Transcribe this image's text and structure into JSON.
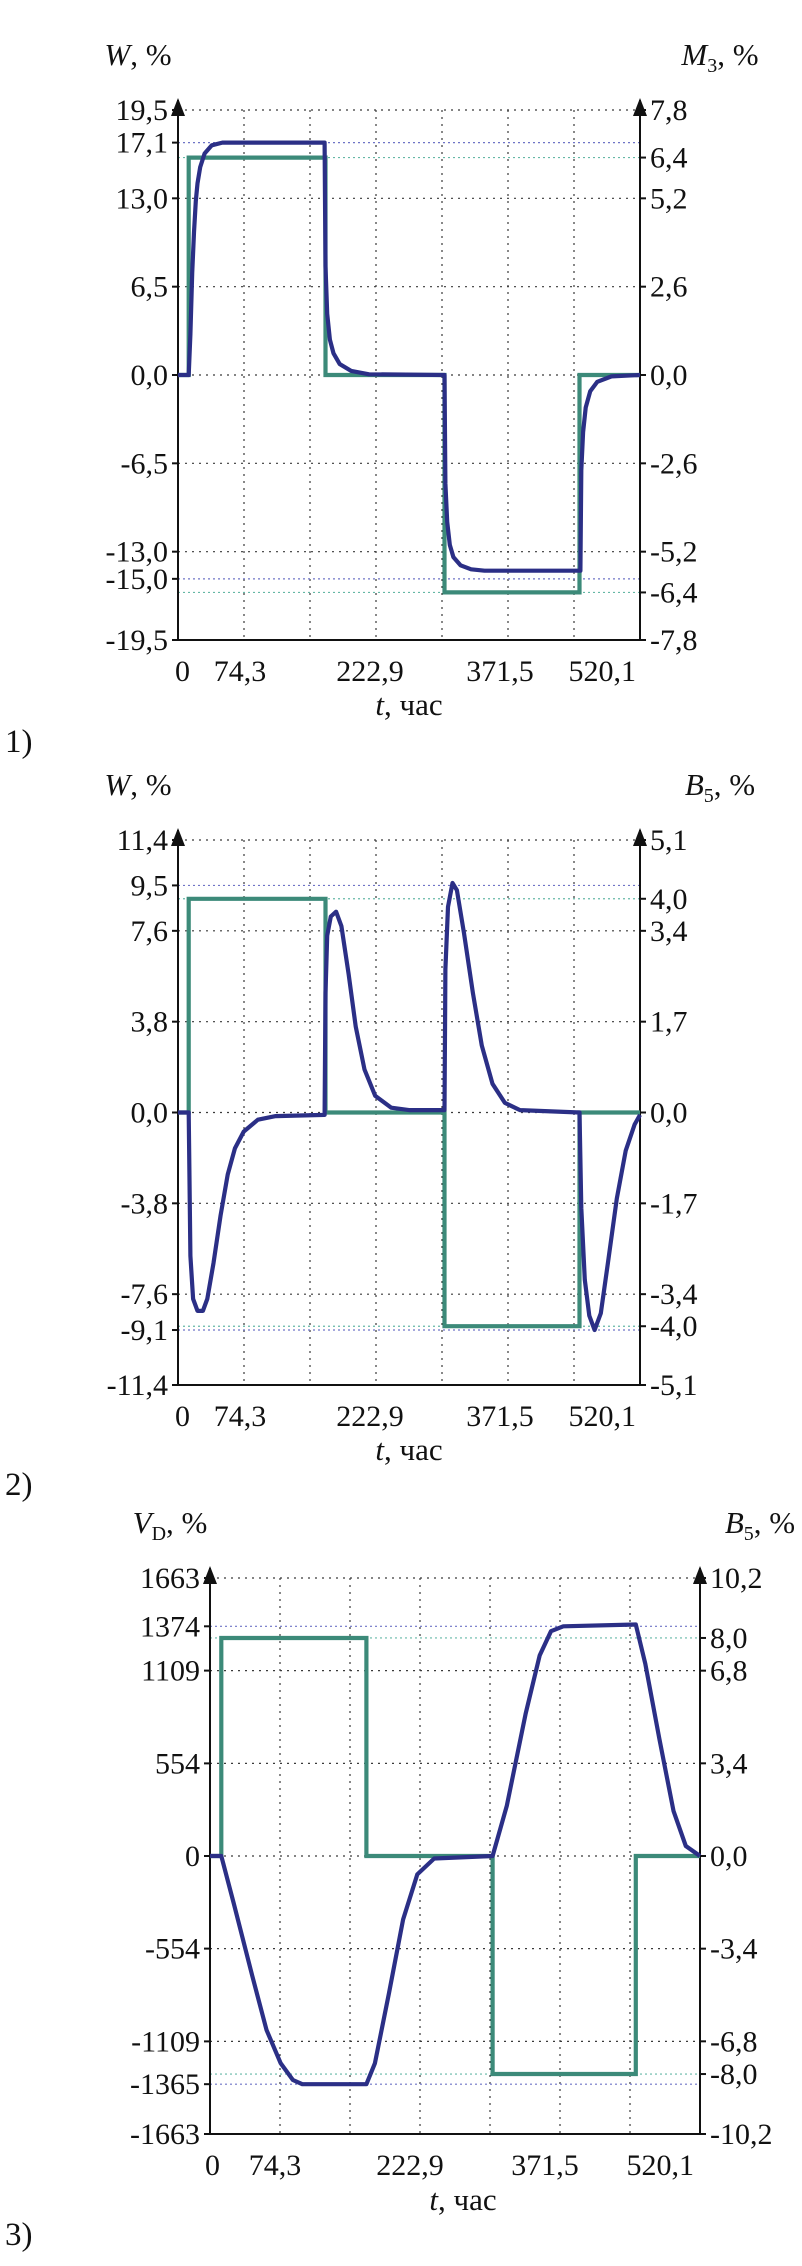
{
  "colors": {
    "blue_series": "#2b2f86",
    "green_series": "#3c8a79",
    "guide_blue": "#6f74c6",
    "guide_green": "#66b8a6"
  },
  "chart_data": [
    {
      "type": "line",
      "panel_label": "1)",
      "xlabel": "t, час",
      "xticks": [
        "0",
        "74,3",
        "222,9",
        "371,5",
        "520,1"
      ],
      "xlim": [
        0,
        520.1
      ],
      "left_axis": {
        "label": "W, %",
        "ylim": [
          -19.5,
          19.5
        ],
        "ticks": [
          19.5,
          17.1,
          13.0,
          6.5,
          0.0,
          -6.5,
          -13.0,
          -15.0,
          -19.5
        ],
        "tick_labels": [
          "19,5",
          "17,1",
          "13,0",
          "6,5",
          "0,0",
          "-6,5",
          "-13,0",
          "-15,0",
          "-19,5"
        ]
      },
      "right_axis": {
        "label": "M3, %",
        "ylim": [
          -7.8,
          7.8
        ],
        "ticks": [
          7.8,
          6.4,
          5.2,
          2.6,
          0.0,
          -2.6,
          -5.2,
          -6.4,
          -7.8
        ],
        "tick_labels": [
          "7,8",
          "6,4",
          "5,2",
          "2,6",
          "0,0",
          "-2,6",
          "-5,2",
          "-6,4",
          "-7,8"
        ]
      },
      "series": [
        {
          "axis": "left",
          "color": "blue",
          "shape": "response",
          "points": [
            [
              0,
              0
            ],
            [
              12,
              0
            ],
            [
              14,
              3.0
            ],
            [
              16,
              7.5
            ],
            [
              18,
              10.5
            ],
            [
              20,
              12.8
            ],
            [
              22,
              14.1
            ],
            [
              25,
              15.3
            ],
            [
              30,
              16.3
            ],
            [
              38,
              16.9
            ],
            [
              50,
              17.1
            ],
            [
              165,
              17.1
            ],
            [
              166,
              8.0
            ],
            [
              168,
              4.5
            ],
            [
              171,
              2.6
            ],
            [
              175,
              1.6
            ],
            [
              182,
              0.8
            ],
            [
              195,
              0.3
            ],
            [
              215,
              0.05
            ],
            [
              300,
              0
            ],
            [
              301,
              -8.0
            ],
            [
              303,
              -10.8
            ],
            [
              306,
              -12.5
            ],
            [
              310,
              -13.4
            ],
            [
              318,
              -14.0
            ],
            [
              330,
              -14.3
            ],
            [
              345,
              -14.4
            ],
            [
              453,
              -14.4
            ],
            [
              454,
              -7.0
            ],
            [
              456,
              -4.2
            ],
            [
              459,
              -2.4
            ],
            [
              464,
              -1.2
            ],
            [
              472,
              -0.5
            ],
            [
              488,
              -0.1
            ],
            [
              520.1,
              0
            ]
          ]
        },
        {
          "axis": "right",
          "color": "green",
          "shape": "step",
          "points": [
            [
              0,
              0
            ],
            [
              12,
              0
            ],
            [
              12,
              6.4
            ],
            [
              166,
              6.4
            ],
            [
              166,
              0
            ],
            [
              300,
              0
            ],
            [
              300,
              -6.4
            ],
            [
              452,
              -6.4
            ],
            [
              452,
              0
            ],
            [
              520.1,
              0
            ]
          ]
        }
      ]
    },
    {
      "type": "line",
      "panel_label": "2)",
      "xlabel": "t, час",
      "xticks": [
        "0",
        "74,3",
        "222,9",
        "371,5",
        "520,1"
      ],
      "xlim": [
        0,
        520.1
      ],
      "left_axis": {
        "label": "W, %",
        "ylim": [
          -11.4,
          11.4
        ],
        "ticks": [
          11.4,
          9.5,
          7.6,
          3.8,
          0.0,
          -3.8,
          -7.6,
          -9.1,
          -11.4
        ],
        "tick_labels": [
          "11,4",
          "9,5",
          "7,6",
          "3,8",
          "0,0",
          "-3,8",
          "-7,6",
          "-9,1",
          "-11,4"
        ]
      },
      "right_axis": {
        "label": "B5, %",
        "ylim": [
          -5.1,
          5.1
        ],
        "ticks": [
          5.1,
          4.0,
          3.4,
          1.7,
          0.0,
          -1.7,
          -3.4,
          -4.0,
          -5.1
        ],
        "tick_labels": [
          "5,1",
          "4,0",
          "3,4",
          "1,7",
          "0,0",
          "-1,7",
          "-3,4",
          "-4,0",
          "-5,1"
        ]
      },
      "series": [
        {
          "axis": "left",
          "color": "blue",
          "shape": "response",
          "points": [
            [
              0,
              0
            ],
            [
              12,
              0
            ],
            [
              14,
              -6.0
            ],
            [
              17,
              -7.8
            ],
            [
              22,
              -8.3
            ],
            [
              28,
              -8.3
            ],
            [
              33,
              -7.8
            ],
            [
              40,
              -6.3
            ],
            [
              48,
              -4.3
            ],
            [
              56,
              -2.6
            ],
            [
              64,
              -1.5
            ],
            [
              74,
              -0.8
            ],
            [
              90,
              -0.3
            ],
            [
              110,
              -0.15
            ],
            [
              165,
              -0.1
            ],
            [
              166,
              5.0
            ],
            [
              168,
              7.4
            ],
            [
              172,
              8.2
            ],
            [
              178,
              8.4
            ],
            [
              184,
              7.8
            ],
            [
              192,
              5.8
            ],
            [
              200,
              3.6
            ],
            [
              210,
              1.8
            ],
            [
              222,
              0.7
            ],
            [
              240,
              0.2
            ],
            [
              260,
              0.1
            ],
            [
              300,
              0.1
            ],
            [
              301,
              6.0
            ],
            [
              304,
              8.6
            ],
            [
              309,
              9.6
            ],
            [
              314,
              9.3
            ],
            [
              322,
              7.5
            ],
            [
              332,
              5.0
            ],
            [
              342,
              2.8
            ],
            [
              354,
              1.2
            ],
            [
              368,
              0.4
            ],
            [
              385,
              0.1
            ],
            [
              452,
              0
            ],
            [
              454,
              -4.0
            ],
            [
              458,
              -7.0
            ],
            [
              463,
              -8.5
            ],
            [
              469,
              -9.1
            ],
            [
              476,
              -8.4
            ],
            [
              484,
              -6.3
            ],
            [
              494,
              -3.6
            ],
            [
              504,
              -1.6
            ],
            [
              514,
              -0.5
            ],
            [
              520.1,
              -0.1
            ]
          ]
        },
        {
          "axis": "right",
          "color": "green",
          "shape": "step",
          "points": [
            [
              0,
              0
            ],
            [
              12,
              0
            ],
            [
              12,
              4.0
            ],
            [
              166,
              4.0
            ],
            [
              166,
              0
            ],
            [
              300,
              0
            ],
            [
              300,
              -4.0
            ],
            [
              452,
              -4.0
            ],
            [
              452,
              0
            ],
            [
              520.1,
              0
            ]
          ]
        }
      ]
    },
    {
      "type": "line",
      "panel_label": "3)",
      "xlabel": "t, час",
      "xticks": [
        "0",
        "74,3",
        "222,9",
        "371,5",
        "520,1"
      ],
      "xlim": [
        0,
        520.1
      ],
      "left_axis": {
        "label": "VD, %",
        "ylim": [
          -1663,
          1663
        ],
        "ticks": [
          1663,
          1374,
          1109,
          554,
          0,
          -554,
          -1109,
          -1365,
          -1663
        ],
        "tick_labels": [
          "1663",
          "1374",
          "1109",
          "554",
          "0",
          "-554",
          "-1109",
          "-1365",
          "-1663"
        ]
      },
      "right_axis": {
        "label": "B5, %",
        "ylim": [
          -10.2,
          10.2
        ],
        "ticks": [
          10.2,
          8.0,
          6.8,
          3.4,
          0.0,
          -3.4,
          -6.8,
          -8.0,
          -10.2
        ],
        "tick_labels": [
          "10,2",
          "8,0",
          "6,8",
          "3,4",
          "0,0",
          "-3,4",
          "-6,8",
          "-8,0",
          "-10,2"
        ]
      },
      "series": [
        {
          "axis": "left",
          "color": "blue",
          "shape": "response",
          "points": [
            [
              0,
              0
            ],
            [
              12,
              0
            ],
            [
              25,
              -280
            ],
            [
              45,
              -720
            ],
            [
              60,
              -1040
            ],
            [
              75,
              -1240
            ],
            [
              88,
              -1340
            ],
            [
              98,
              -1365
            ],
            [
              166,
              -1365
            ],
            [
              175,
              -1240
            ],
            [
              190,
              -820
            ],
            [
              205,
              -380
            ],
            [
              220,
              -110
            ],
            [
              238,
              -15
            ],
            [
              300,
              0
            ],
            [
              315,
              300
            ],
            [
              335,
              850
            ],
            [
              350,
              1200
            ],
            [
              362,
              1345
            ],
            [
              375,
              1374
            ],
            [
              452,
              1385
            ],
            [
              462,
              1150
            ],
            [
              477,
              700
            ],
            [
              492,
              270
            ],
            [
              505,
              60
            ],
            [
              520.1,
              0
            ]
          ]
        },
        {
          "axis": "right",
          "color": "green",
          "shape": "step",
          "points": [
            [
              0,
              0
            ],
            [
              12,
              0
            ],
            [
              12,
              8.0
            ],
            [
              166,
              8.0
            ],
            [
              166,
              0
            ],
            [
              300,
              0
            ],
            [
              300,
              -8.0
            ],
            [
              452,
              -8.0
            ],
            [
              452,
              0
            ],
            [
              520.1,
              0
            ]
          ]
        }
      ]
    }
  ]
}
